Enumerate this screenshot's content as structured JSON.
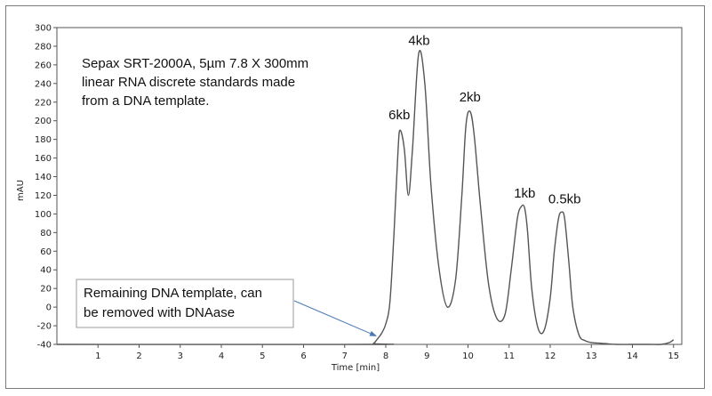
{
  "chart_data": {
    "type": "line",
    "xlabel": "Time [min]",
    "ylabel": "mAU",
    "xlim": [
      0,
      15.2
    ],
    "ylim": [
      -40,
      300
    ],
    "x_ticks": [
      "1",
      "2",
      "3",
      "4",
      "5",
      "6",
      "7",
      "8",
      "9",
      "10",
      "11",
      "12",
      "13",
      "14",
      "15"
    ],
    "y_ticks": [
      "-40",
      "-20",
      "0",
      "20",
      "40",
      "60",
      "80",
      "100",
      "120",
      "140",
      "160",
      "180",
      "200",
      "220",
      "240",
      "260",
      "280",
      "300"
    ],
    "grid": false,
    "series": [
      {
        "x": [
          0,
          7.6,
          7.7,
          7.8,
          7.9,
          8.0,
          8.1,
          8.2,
          8.3,
          8.35,
          8.45,
          8.55,
          8.65,
          8.8,
          8.95,
          9.1,
          9.3,
          9.5,
          9.7,
          9.85,
          9.95,
          10.05,
          10.15,
          10.3,
          10.5,
          10.7,
          10.9,
          11.05,
          11.2,
          11.3,
          11.38,
          11.45,
          11.55,
          11.7,
          11.85,
          12.0,
          12.1,
          12.2,
          12.28,
          12.35,
          12.45,
          12.55,
          12.7,
          12.85,
          13.0,
          13.3,
          13.6,
          14.0,
          14.4,
          14.7,
          14.9,
          15.0
        ],
        "y": [
          -40,
          -40,
          -39,
          -34,
          -28,
          -18,
          5,
          80,
          170,
          190,
          170,
          120,
          170,
          272,
          240,
          130,
          40,
          0,
          30,
          120,
          195,
          210,
          185,
          110,
          25,
          -12,
          -8,
          40,
          95,
          108,
          106,
          80,
          20,
          -22,
          -25,
          10,
          60,
          95,
          102,
          95,
          50,
          0,
          -30,
          -36,
          -38,
          -39,
          -40,
          -40,
          -40,
          -40,
          -38,
          -35
        ]
      }
    ],
    "annotations": [
      {
        "text": "Sepax SRT-2000A, 5µm 7.8 X 300mm"
      },
      {
        "text": "linear RNA  discrete standards made"
      },
      {
        "text": "from a DNA template."
      }
    ],
    "peak_labels": [
      {
        "text": "6kb",
        "x": 8.33,
        "y": 192
      },
      {
        "text": "4kb",
        "x": 8.81,
        "y": 272
      },
      {
        "text": "2kb",
        "x": 10.05,
        "y": 211
      },
      {
        "text": "1kb",
        "x": 11.38,
        "y": 108
      },
      {
        "text": "0.5kb",
        "x": 12.35,
        "y": 102
      }
    ],
    "callout": {
      "lines": [
        "Remaining DNA template, can",
        "be removed with DNAase"
      ],
      "target": {
        "x": 7.85,
        "y": -28
      }
    }
  }
}
